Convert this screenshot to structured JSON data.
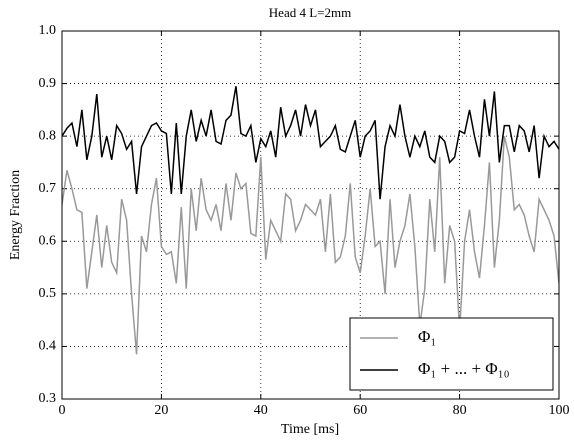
{
  "chart_data": {
    "type": "line",
    "title": "Head 4 L=2mm",
    "xlabel": "Time [ms]",
    "ylabel": "Energy Fraction",
    "x": [
      0,
      1,
      2,
      3,
      4,
      5,
      6,
      7,
      8,
      9,
      10,
      11,
      12,
      13,
      14,
      15,
      16,
      17,
      18,
      19,
      20,
      21,
      22,
      23,
      24,
      25,
      26,
      27,
      28,
      29,
      30,
      31,
      32,
      33,
      34,
      35,
      36,
      37,
      38,
      39,
      40,
      41,
      42,
      43,
      44,
      45,
      46,
      47,
      48,
      49,
      50,
      51,
      52,
      53,
      54,
      55,
      56,
      57,
      58,
      59,
      60,
      61,
      62,
      63,
      64,
      65,
      66,
      67,
      68,
      69,
      70,
      71,
      72,
      73,
      74,
      75,
      76,
      77,
      78,
      79,
      80,
      81,
      82,
      83,
      84,
      85,
      86,
      87,
      88,
      89,
      90,
      91,
      92,
      93,
      94,
      95,
      96,
      97,
      98,
      99,
      100
    ],
    "series": [
      {
        "name": "Φ₁",
        "color": "#999999",
        "values": [
          0.67,
          0.735,
          0.7,
          0.66,
          0.655,
          0.51,
          0.58,
          0.65,
          0.55,
          0.63,
          0.56,
          0.54,
          0.68,
          0.64,
          0.5,
          0.385,
          0.61,
          0.58,
          0.67,
          0.72,
          0.59,
          0.575,
          0.58,
          0.52,
          0.665,
          0.51,
          0.7,
          0.62,
          0.72,
          0.66,
          0.64,
          0.67,
          0.62,
          0.71,
          0.64,
          0.73,
          0.7,
          0.71,
          0.615,
          0.61,
          0.76,
          0.565,
          0.64,
          0.62,
          0.6,
          0.69,
          0.68,
          0.62,
          0.64,
          0.67,
          0.66,
          0.65,
          0.68,
          0.58,
          0.69,
          0.56,
          0.57,
          0.61,
          0.71,
          0.57,
          0.54,
          0.61,
          0.7,
          0.59,
          0.6,
          0.5,
          0.68,
          0.55,
          0.6,
          0.63,
          0.69,
          0.59,
          0.44,
          0.51,
          0.68,
          0.58,
          0.76,
          0.52,
          0.63,
          0.6,
          0.43,
          0.6,
          0.66,
          0.58,
          0.53,
          0.63,
          0.75,
          0.55,
          0.64,
          0.8,
          0.76,
          0.66,
          0.67,
          0.65,
          0.61,
          0.58,
          0.68,
          0.66,
          0.64,
          0.61,
          0.52
        ]
      },
      {
        "name": "Φ₁ + ... + Φ₁₀",
        "color": "#000000",
        "values": [
          0.8,
          0.815,
          0.825,
          0.78,
          0.85,
          0.755,
          0.8,
          0.88,
          0.76,
          0.8,
          0.755,
          0.82,
          0.805,
          0.775,
          0.79,
          0.69,
          0.78,
          0.8,
          0.82,
          0.825,
          0.81,
          0.805,
          0.69,
          0.825,
          0.69,
          0.8,
          0.85,
          0.79,
          0.83,
          0.8,
          0.85,
          0.79,
          0.785,
          0.83,
          0.84,
          0.895,
          0.805,
          0.8,
          0.82,
          0.75,
          0.795,
          0.78,
          0.81,
          0.76,
          0.855,
          0.8,
          0.82,
          0.85,
          0.8,
          0.86,
          0.82,
          0.85,
          0.78,
          0.79,
          0.8,
          0.82,
          0.775,
          0.77,
          0.8,
          0.83,
          0.76,
          0.8,
          0.81,
          0.83,
          0.68,
          0.78,
          0.82,
          0.8,
          0.86,
          0.8,
          0.76,
          0.8,
          0.78,
          0.81,
          0.76,
          0.75,
          0.8,
          0.79,
          0.75,
          0.76,
          0.81,
          0.805,
          0.85,
          0.8,
          0.76,
          0.87,
          0.8,
          0.885,
          0.75,
          0.82,
          0.82,
          0.77,
          0.82,
          0.81,
          0.77,
          0.82,
          0.72,
          0.8,
          0.78,
          0.79,
          0.775
        ]
      }
    ],
    "xlim": [
      0,
      100
    ],
    "xticks": [
      0,
      20,
      40,
      60,
      80,
      100
    ],
    "ylim": [
      0.3,
      1
    ],
    "yticks": [
      0.3,
      0.4,
      0.5,
      0.6,
      0.7,
      0.8,
      0.9,
      {
        "value": 1,
        "label": "1.0"
      }
    ],
    "grid": true,
    "legend": "lower right"
  }
}
